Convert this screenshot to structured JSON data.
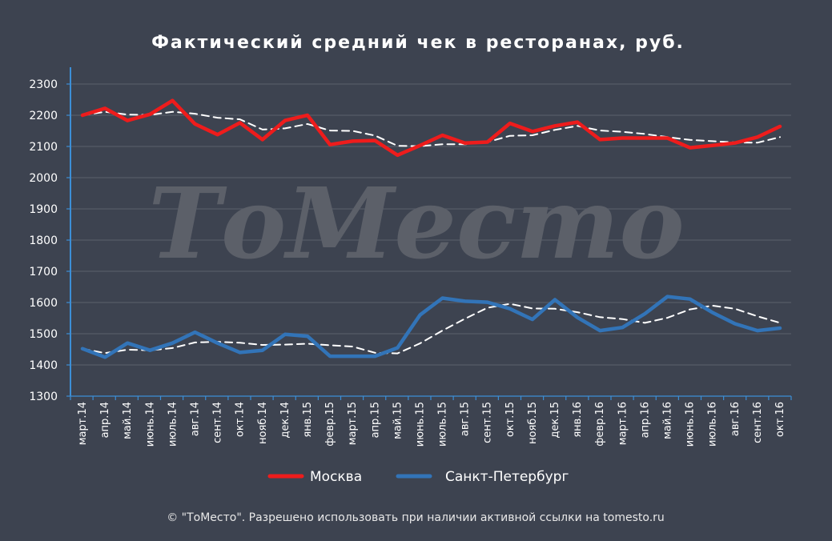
{
  "chart_data": {
    "type": "line",
    "title": "Фактический средний чек в ресторанах, руб.",
    "ylim": [
      1300,
      2300
    ],
    "yticks": [
      1300,
      1400,
      1500,
      1600,
      1700,
      1800,
      1900,
      2000,
      2100,
      2200,
      2300
    ],
    "grid": true,
    "legend_position": "bottom",
    "categories": [
      "март.14",
      "апр.14",
      "май.14",
      "июнь.14",
      "июль.14",
      "авг.14",
      "сент.14",
      "окт.14",
      "нояб.14",
      "дек.14",
      "янв.15",
      "февр.15",
      "март.15",
      "апр.15",
      "май.15",
      "июнь.15",
      "июль.15",
      "авг.15",
      "сент.15",
      "окт.15",
      "нояб.15",
      "дек.15",
      "янв.16",
      "февр.16",
      "март.16",
      "апр.16",
      "май.16",
      "июнь.16",
      "июль.16",
      "авг.16",
      "сент.16",
      "окт.16"
    ],
    "series": [
      {
        "name": "Москва",
        "color": "#ee1c1c",
        "values": [
          2200,
          2222,
          2183,
          2203,
          2247,
          2172,
          2138,
          2176,
          2122,
          2183,
          2200,
          2106,
          2117,
          2119,
          2072,
          2103,
          2136,
          2111,
          2114,
          2174,
          2148,
          2166,
          2178,
          2122,
          2127,
          2127,
          2127,
          2096,
          2103,
          2111,
          2130,
          2164
        ]
      },
      {
        "name": "Санкт-Петербург",
        "color": "#3274b8",
        "values": [
          1452,
          1425,
          1470,
          1447,
          1470,
          1505,
          1470,
          1440,
          1447,
          1498,
          1492,
          1428,
          1428,
          1428,
          1455,
          1560,
          1614,
          1604,
          1601,
          1580,
          1546,
          1609,
          1552,
          1510,
          1520,
          1564,
          1619,
          1611,
          1568,
          1532,
          1510,
          1518
        ]
      },
      {
        "color": "#ffffff",
        "dashed": true,
        "trend_of": "Москва",
        "values": [
          2200,
          2211,
          2202,
          2201,
          2211,
          2205,
          2192,
          2187,
          2154,
          2158,
          2172,
          2151,
          2150,
          2135,
          2102,
          2101,
          2107,
          2107,
          2114,
          2134,
          2136,
          2153,
          2166,
          2151,
          2147,
          2140,
          2130,
          2121,
          2117,
          2113,
          2112,
          2130
        ]
      },
      {
        "color": "#ffffff",
        "dashed": true,
        "trend_of": "Санкт-Петербург",
        "values": [
          1452,
          1438,
          1449,
          1447,
          1454,
          1472,
          1474,
          1471,
          1464,
          1465,
          1468,
          1463,
          1459,
          1439,
          1437,
          1469,
          1510,
          1548,
          1583,
          1596,
          1581,
          1580,
          1569,
          1553,
          1547,
          1535,
          1551,
          1578,
          1590,
          1580,
          1556,
          1535
        ]
      }
    ]
  },
  "watermark": "ТоМесто",
  "footer": "© \"ТоМесто\". Разрешено использовать при наличии активной ссылки на tomesto.ru"
}
